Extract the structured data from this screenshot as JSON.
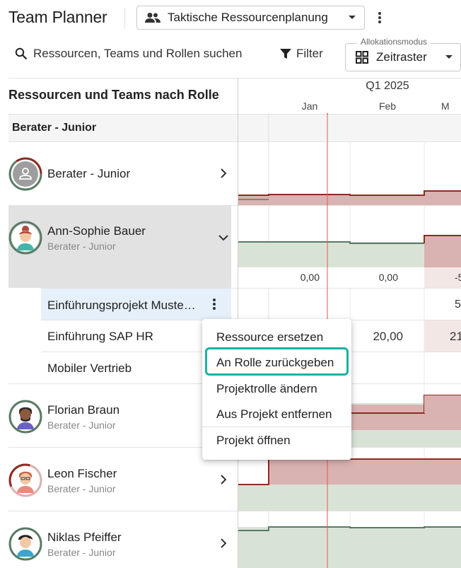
{
  "header": {
    "app_title": "Team Planner",
    "view_selector": {
      "label": "Taktische Ressourcenplanung",
      "icon": "people-icon"
    },
    "more_icon": "more-vert-icon"
  },
  "toolbar": {
    "search_placeholder": "Ressourcen, Teams und Rollen suchen",
    "filter_label": "Filter",
    "allocation_mode": {
      "legend": "Allokationsmodus",
      "value": "Zeitraster",
      "icon": "grid-icon"
    }
  },
  "left_column": {
    "header": "Ressourcen und Teams nach Rolle"
  },
  "timeline": {
    "quarter": "Q1 2025",
    "months": [
      "Jan",
      "Feb",
      "M"
    ]
  },
  "group": {
    "label": "Berater - Junior"
  },
  "rows": [
    {
      "name": "Berater - Junior",
      "role": "",
      "expanded": false
    },
    {
      "name": "Ann-Sophie Bauer",
      "role": "Berater - Junior",
      "expanded": true,
      "values": [
        "0,00",
        "0,00",
        "-5"
      ],
      "projects": [
        {
          "name": "Einführungsprojekt Muste…",
          "values": [
            "",
            "",
            "5"
          ]
        },
        {
          "name": "Einführung SAP HR",
          "values": [
            "",
            "20,00",
            "21"
          ]
        },
        {
          "name": "Mobiler Vertrieb",
          "values": [
            "",
            "",
            ""
          ]
        }
      ]
    },
    {
      "name": "Florian Braun",
      "role": "Berater - Junior",
      "expanded": false
    },
    {
      "name": "Leon Fischer",
      "role": "Berater - Junior",
      "expanded": false
    },
    {
      "name": "Niklas Pfeiffer",
      "role": "Berater - Junior",
      "expanded": false
    }
  ],
  "context_menu": {
    "items": [
      "Ressource ersetzen",
      "An Rolle zurückgeben",
      "Projektrolle ändern",
      "Aus Projekt entfernen",
      "Projekt öffnen"
    ],
    "highlighted": "An Rolle zurückgeben"
  },
  "colors": {
    "accent_teal": "#17b3a3",
    "over_alloc": "#d9b3b1",
    "over_line": "#8e2a22",
    "avail": "#d9e3d5",
    "avail_line": "#5a7a65",
    "today_line": "#e05a5a"
  }
}
